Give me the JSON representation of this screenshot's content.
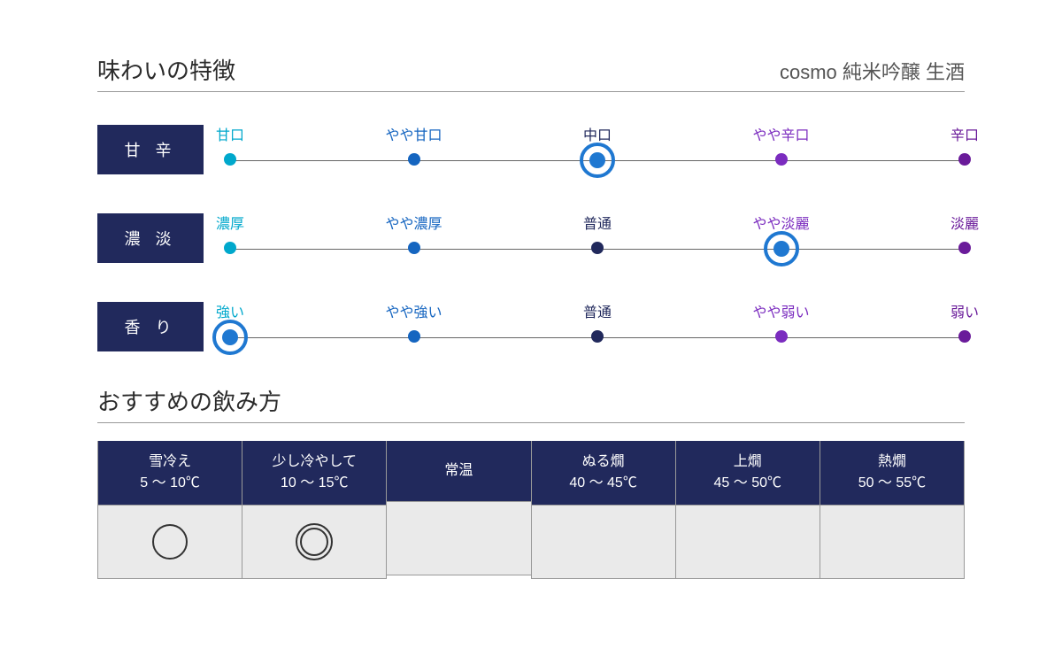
{
  "colors": {
    "navy": "#21295c",
    "ring": "#1f78d1"
  },
  "taste": {
    "title": "味わいの特徴",
    "product": "cosmo 純米吟醸 生酒",
    "scales": [
      {
        "label": "甘 辛",
        "selected_index": 2,
        "points": [
          {
            "label": "甘口",
            "color": "#00a8cc"
          },
          {
            "label": "やや甘口",
            "color": "#1565c0"
          },
          {
            "label": "中口",
            "color": "#21295c"
          },
          {
            "label": "やや辛口",
            "color": "#7b2cbf"
          },
          {
            "label": "辛口",
            "color": "#6a1b9a"
          }
        ]
      },
      {
        "label": "濃 淡",
        "selected_index": 3,
        "points": [
          {
            "label": "濃厚",
            "color": "#00a8cc"
          },
          {
            "label": "やや濃厚",
            "color": "#1565c0"
          },
          {
            "label": "普通",
            "color": "#21295c"
          },
          {
            "label": "やや淡麗",
            "color": "#7b2cbf"
          },
          {
            "label": "淡麗",
            "color": "#6a1b9a"
          }
        ]
      },
      {
        "label": "香 り",
        "selected_index": 0,
        "points": [
          {
            "label": "強い",
            "color": "#00a8cc"
          },
          {
            "label": "やや強い",
            "color": "#1565c0"
          },
          {
            "label": "普通",
            "color": "#21295c"
          },
          {
            "label": "やや弱い",
            "color": "#7b2cbf"
          },
          {
            "label": "弱い",
            "color": "#6a1b9a"
          }
        ]
      }
    ]
  },
  "serving": {
    "title": "おすすめの飲み方",
    "columns": [
      {
        "name": "雪冷え",
        "range": "5 〜 10℃",
        "mark": "single"
      },
      {
        "name": "少し冷やして",
        "range": "10 〜 15℃",
        "mark": "double"
      },
      {
        "name": "常温",
        "range": "",
        "mark": ""
      },
      {
        "name": "ぬる燗",
        "range": "40 〜 45℃",
        "mark": ""
      },
      {
        "name": "上燗",
        "range": "45 〜 50℃",
        "mark": ""
      },
      {
        "name": "熱燗",
        "range": "50 〜 55℃",
        "mark": ""
      }
    ]
  }
}
